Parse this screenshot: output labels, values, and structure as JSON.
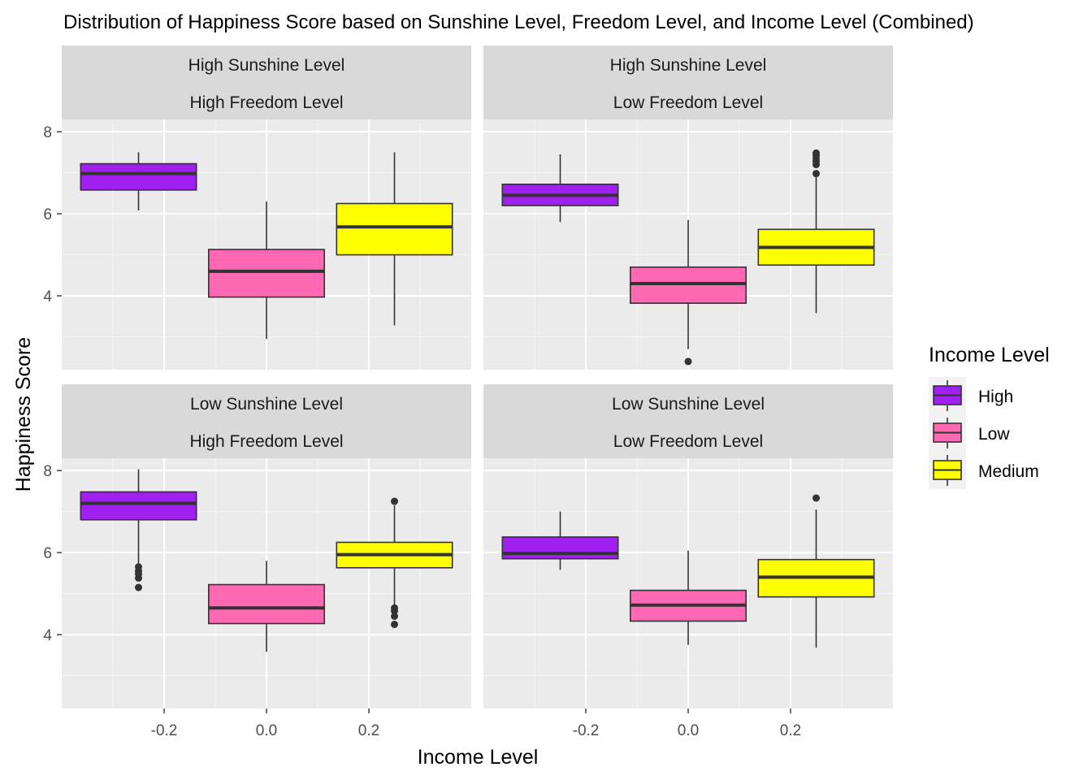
{
  "chart_data": {
    "type": "boxplot",
    "title": "Distribution of Happiness Score based on Sunshine Level, Freedom Level, and Income Level (Combined)",
    "xlabel": "Income Level",
    "ylabel": "Happiness Score",
    "xlim": [
      -0.4,
      0.4
    ],
    "ylim": [
      2.2,
      8.3
    ],
    "x_ticks": [
      -0.2,
      0.0,
      0.2
    ],
    "x_tick_labels": [
      "-0.2",
      "0.0",
      "0.2"
    ],
    "y_ticks": [
      4,
      6,
      8
    ],
    "y_tick_labels": [
      "4",
      "6",
      "8"
    ],
    "legend": {
      "title": "Income Level",
      "position": "right",
      "entries": [
        {
          "label": "High",
          "color": "#a020f0"
        },
        {
          "label": "Low",
          "color": "#ff69b4"
        },
        {
          "label": "Medium",
          "color": "#ffff00"
        }
      ]
    },
    "panels": [
      {
        "strip": [
          "High Sunshine Level",
          "High Freedom Level"
        ],
        "boxes": [
          {
            "group": "High",
            "x": -0.25,
            "color": "#a020f0",
            "min": 6.08,
            "q1": 6.58,
            "median": 6.98,
            "q3": 7.22,
            "max": 7.5,
            "outliers": []
          },
          {
            "group": "Low",
            "x": 0.0,
            "color": "#ff69b4",
            "min": 2.95,
            "q1": 3.97,
            "median": 4.6,
            "q3": 5.13,
            "max": 6.3,
            "outliers": []
          },
          {
            "group": "Medium",
            "x": 0.25,
            "color": "#ffff00",
            "min": 3.28,
            "q1": 5.0,
            "median": 5.68,
            "q3": 6.25,
            "max": 7.5,
            "outliers": []
          }
        ]
      },
      {
        "strip": [
          "High Sunshine Level",
          "Low Freedom Level"
        ],
        "boxes": [
          {
            "group": "High",
            "x": -0.25,
            "color": "#a020f0",
            "min": 5.8,
            "q1": 6.2,
            "median": 6.45,
            "q3": 6.72,
            "max": 7.45,
            "outliers": []
          },
          {
            "group": "Low",
            "x": 0.0,
            "color": "#ff69b4",
            "min": 2.7,
            "q1": 3.82,
            "median": 4.3,
            "q3": 4.7,
            "max": 5.85,
            "outliers": [
              2.4
            ]
          },
          {
            "group": "Medium",
            "x": 0.25,
            "color": "#ffff00",
            "min": 3.58,
            "q1": 4.75,
            "median": 5.18,
            "q3": 5.62,
            "max": 6.92,
            "outliers": [
              6.98,
              7.2,
              7.28,
              7.35,
              7.42,
              7.48
            ]
          }
        ]
      },
      {
        "strip": [
          "Low Sunshine Level",
          "High Freedom Level"
        ],
        "boxes": [
          {
            "group": "High",
            "x": -0.25,
            "color": "#a020f0",
            "min": 5.72,
            "q1": 6.8,
            "median": 7.2,
            "q3": 7.48,
            "max": 8.03,
            "outliers": [
              5.15,
              5.38,
              5.48,
              5.55,
              5.65
            ]
          },
          {
            "group": "Low",
            "x": 0.0,
            "color": "#ff69b4",
            "min": 3.58,
            "q1": 4.27,
            "median": 4.65,
            "q3": 5.22,
            "max": 5.8,
            "outliers": []
          },
          {
            "group": "Medium",
            "x": 0.25,
            "color": "#ffff00",
            "min": 4.72,
            "q1": 5.63,
            "median": 5.95,
            "q3": 6.25,
            "max": 7.15,
            "outliers": [
              4.25,
              4.45,
              4.58,
              4.65,
              7.25
            ]
          }
        ]
      },
      {
        "strip": [
          "Low Sunshine Level",
          "Low Freedom Level"
        ],
        "boxes": [
          {
            "group": "High",
            "x": -0.25,
            "color": "#a020f0",
            "min": 5.58,
            "q1": 5.85,
            "median": 5.98,
            "q3": 6.38,
            "max": 7.0,
            "outliers": []
          },
          {
            "group": "Low",
            "x": 0.0,
            "color": "#ff69b4",
            "min": 3.75,
            "q1": 4.33,
            "median": 4.72,
            "q3": 5.08,
            "max": 6.05,
            "outliers": []
          },
          {
            "group": "Medium",
            "x": 0.25,
            "color": "#ffff00",
            "min": 3.68,
            "q1": 4.92,
            "median": 5.4,
            "q3": 5.83,
            "max": 7.05,
            "outliers": [
              7.33
            ]
          }
        ]
      }
    ]
  }
}
